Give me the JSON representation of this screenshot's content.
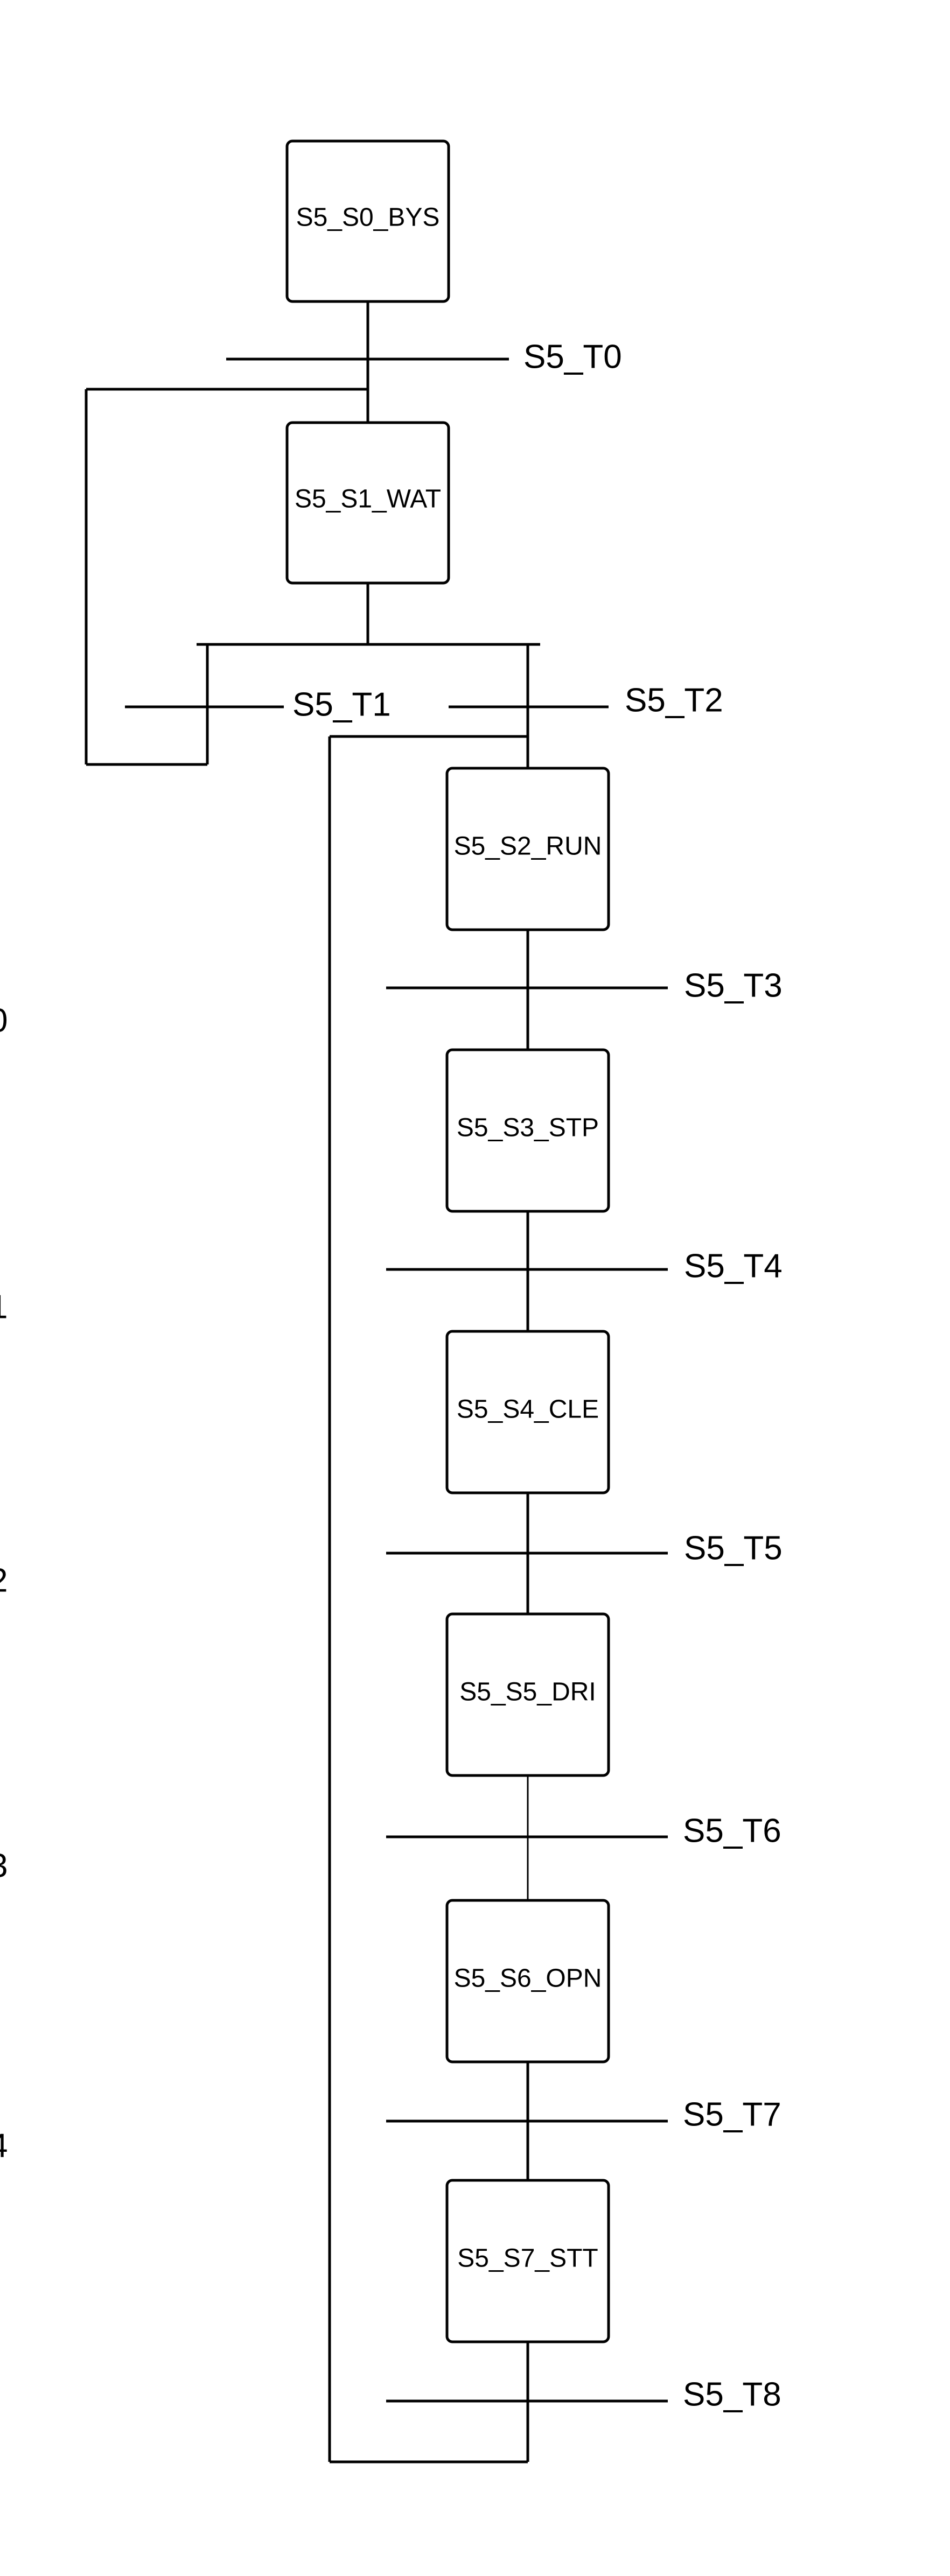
{
  "colors": {
    "stroke": "#000000",
    "background": "#ffffff"
  },
  "steps": [
    {
      "id": "s0",
      "label": "S5_S0_BYS"
    },
    {
      "id": "s1",
      "label": "S5_S1_WAT"
    },
    {
      "id": "s2",
      "label": "S5_S2_RUN"
    },
    {
      "id": "s3",
      "label": "S5_S3_STP"
    },
    {
      "id": "s4",
      "label": "S5_S4_CLE"
    },
    {
      "id": "s5",
      "label": "S5_S5_DRI"
    },
    {
      "id": "s6",
      "label": "S5_S6_OPN"
    },
    {
      "id": "s7",
      "label": "S5_S7_STT"
    }
  ],
  "transitions": [
    {
      "id": "t0",
      "label": "S5_T0"
    },
    {
      "id": "t1",
      "label": "S5_T1"
    },
    {
      "id": "t2",
      "label": "S5_T2"
    },
    {
      "id": "t3",
      "label": "S5_T3"
    },
    {
      "id": "t4",
      "label": "S5_T4"
    },
    {
      "id": "t5",
      "label": "S5_T5"
    },
    {
      "id": "t6",
      "label": "S5_T6"
    },
    {
      "id": "t7",
      "label": "S5_T7"
    },
    {
      "id": "t8",
      "label": "S5_T8"
    }
  ],
  "left_edge_fragments": [
    "0",
    "1",
    "2",
    "3",
    "4"
  ]
}
